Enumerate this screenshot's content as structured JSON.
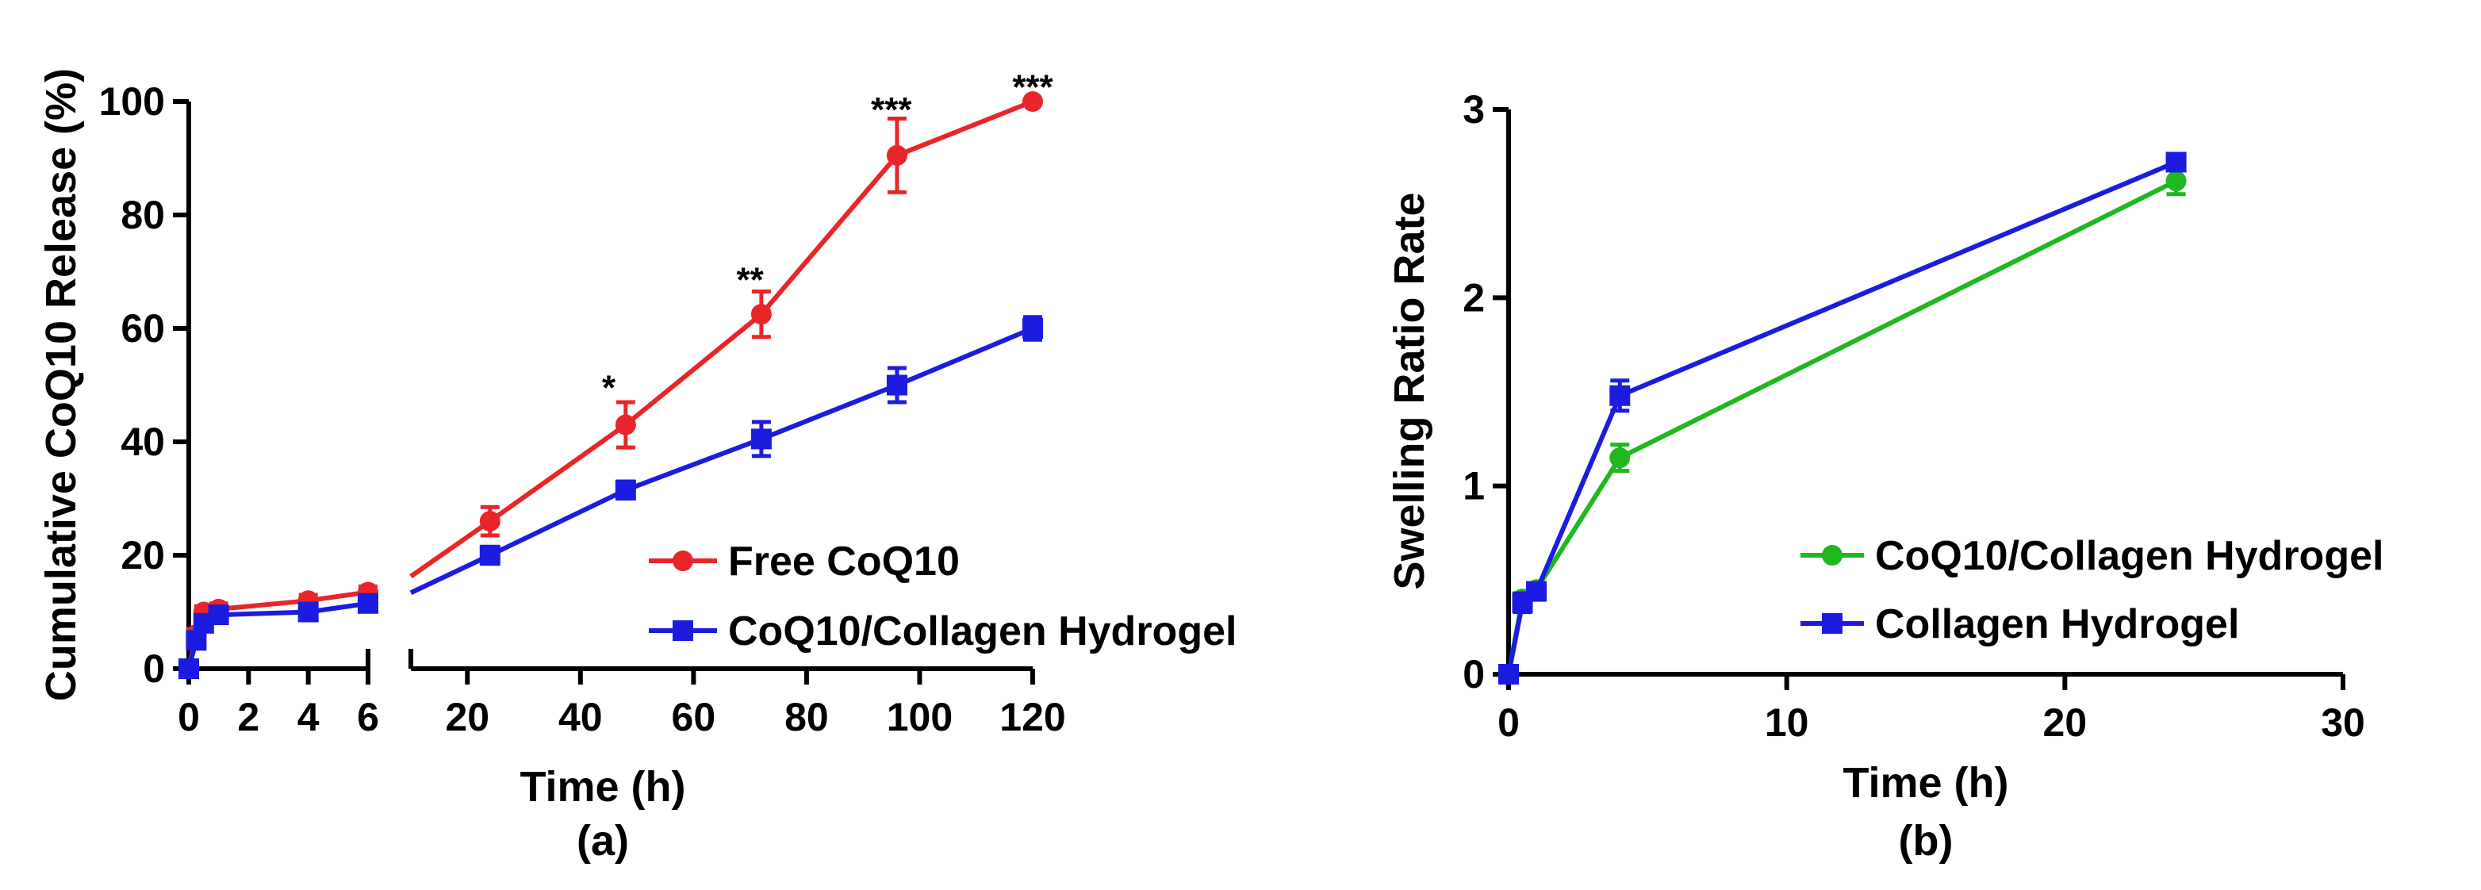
{
  "chart_data": [
    {
      "id": "a",
      "type": "line",
      "caption": "(a)",
      "xlabel": "Time (h)",
      "ylabel": "Cumulative CoQ10 Release (%)",
      "ylim": [
        0,
        100
      ],
      "yticks": [
        "0",
        "20",
        "40",
        "60",
        "80",
        "100"
      ],
      "x_segments": [
        {
          "range": [
            0,
            6
          ],
          "ticks": [
            "0",
            "2",
            "4",
            "6"
          ]
        },
        {
          "range": [
            10,
            120
          ],
          "ticks": [
            "20",
            "40",
            "60",
            "80",
            "100",
            "120"
          ]
        }
      ],
      "series": [
        {
          "name": "Free CoQ10",
          "color": "#e8262a",
          "marker": "circle",
          "points": [
            {
              "x": 0,
              "y": 0,
              "err": 0
            },
            {
              "x": 0.25,
              "y": 6,
              "err": 1
            },
            {
              "x": 0.5,
              "y": 10,
              "err": 1
            },
            {
              "x": 1,
              "y": 10.5,
              "err": 1
            },
            {
              "x": 4,
              "y": 12,
              "err": 1
            },
            {
              "x": 6,
              "y": 13.5,
              "err": 1
            },
            {
              "x": 24,
              "y": 26,
              "err": 2.5
            },
            {
              "x": 48,
              "y": 43,
              "err": 4
            },
            {
              "x": 72,
              "y": 62.5,
              "err": 4
            },
            {
              "x": 96,
              "y": 90.5,
              "err": 6.5
            },
            {
              "x": 120,
              "y": 100,
              "err": 0
            }
          ]
        },
        {
          "name": "CoQ10/Collagen Hydrogel",
          "color": "#1c1ce0",
          "marker": "square",
          "points": [
            {
              "x": 0,
              "y": 0,
              "err": 0
            },
            {
              "x": 0.25,
              "y": 5,
              "err": 1
            },
            {
              "x": 0.5,
              "y": 8,
              "err": 1
            },
            {
              "x": 1,
              "y": 9.5,
              "err": 1
            },
            {
              "x": 4,
              "y": 10,
              "err": 1
            },
            {
              "x": 6,
              "y": 11.5,
              "err": 1
            },
            {
              "x": 24,
              "y": 20,
              "err": 1.5
            },
            {
              "x": 48,
              "y": 31.5,
              "err": 1.5
            },
            {
              "x": 72,
              "y": 40.5,
              "err": 3
            },
            {
              "x": 96,
              "y": 50,
              "err": 3
            },
            {
              "x": 120,
              "y": 60,
              "err": 2
            }
          ]
        }
      ],
      "annotations": [
        {
          "text": "*",
          "x": 45,
          "y": 50
        },
        {
          "text": "**",
          "x": 70,
          "y": 69
        },
        {
          "text": "***",
          "x": 95,
          "y": 99
        },
        {
          "text": "***",
          "x": 120,
          "y": 103
        }
      ],
      "legend_position": "lower-right"
    },
    {
      "id": "b",
      "type": "line",
      "caption": "(b)",
      "xlabel": "Time (h)",
      "ylabel": "Swelling Ratio Rate",
      "xlim": [
        0,
        30
      ],
      "ylim": [
        0,
        3
      ],
      "xticks": [
        "0",
        "10",
        "20",
        "30"
      ],
      "yticks": [
        "0",
        "1",
        "2",
        "3"
      ],
      "series": [
        {
          "name": "CoQ10/Collagen Hydrogel",
          "color": "#1fb81f",
          "marker": "circle",
          "points": [
            {
              "x": 0,
              "y": 0,
              "err": 0
            },
            {
              "x": 0.5,
              "y": 0.4,
              "err": 0.03
            },
            {
              "x": 1,
              "y": 0.45,
              "err": 0.03
            },
            {
              "x": 4,
              "y": 1.15,
              "err": 0.07
            },
            {
              "x": 24,
              "y": 2.62,
              "err": 0.07
            }
          ]
        },
        {
          "name": "Collagen Hydrogel",
          "color": "#1c1ce0",
          "marker": "square",
          "points": [
            {
              "x": 0,
              "y": 0,
              "err": 0
            },
            {
              "x": 0.5,
              "y": 0.38,
              "err": 0.05
            },
            {
              "x": 1,
              "y": 0.44,
              "err": 0.03
            },
            {
              "x": 4,
              "y": 1.48,
              "err": 0.08
            },
            {
              "x": 24,
              "y": 2.72,
              "err": 0.04
            }
          ]
        }
      ],
      "legend_position": "lower-right"
    }
  ]
}
